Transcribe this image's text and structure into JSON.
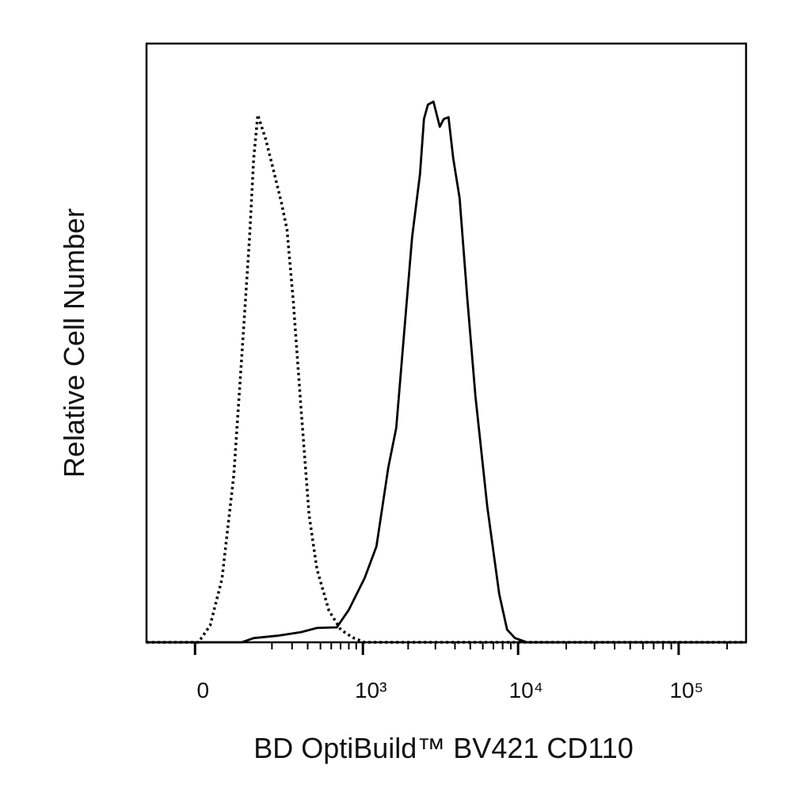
{
  "chart_data": {
    "type": "line",
    "x_label": "BD OptiBuild™ BV421 CD110",
    "y_label": "Relative Cell Number",
    "xscale": "log1p",
    "xlim": [
      -100,
      262143
    ],
    "xticks": [
      0,
      {
        "value": 1000,
        "label": "10³"
      },
      {
        "value": 10000,
        "label": "10⁴"
      },
      {
        "value": 100000,
        "label": "10⁵"
      }
    ],
    "xminorticks": [
      200,
      300,
      400,
      500,
      600,
      700,
      800,
      900,
      2000,
      3000,
      4000,
      5000,
      6000,
      7000,
      8000,
      9000,
      20000,
      30000,
      40000,
      50000,
      60000,
      70000,
      80000,
      90000,
      200000
    ],
    "ylim": [
      0,
      100
    ],
    "series": [
      {
        "color": "#000000",
        "linestyle": "dotted",
        "x": [
          -100,
          5,
          24,
          47,
          74,
          95,
          118,
          131,
          145,
          174,
          207,
          243,
          272,
          307,
          356,
          410,
          471,
          577,
          702,
          850,
          1026,
          262143
        ],
        "values": [
          0,
          0,
          2.8,
          10.6,
          27.9,
          47.8,
          67.6,
          80.8,
          88.1,
          84.1,
          78.8,
          73.5,
          68.9,
          57.0,
          38.5,
          21.2,
          12.2,
          5.3,
          2.1,
          0.8,
          0,
          0
        ]
      },
      {
        "color": "#000000",
        "linestyle": "solid",
        "x": [
          -100,
          95,
          131,
          224,
          356,
          471,
          658,
          798,
          1026,
          1235,
          1481,
          1671,
          1883,
          2121,
          2387,
          2531,
          2684,
          2914,
          3200,
          3391,
          3636,
          3899,
          4279,
          4802,
          5390,
          6406,
          7610,
          8533,
          9567,
          11360,
          262143
        ],
        "values": [
          0,
          0,
          0.7,
          1.1,
          1.7,
          2.4,
          2.5,
          5.4,
          10.7,
          16.0,
          29.2,
          35.8,
          51.7,
          67.6,
          78.2,
          87.4,
          89.8,
          90.3,
          86.1,
          87.4,
          87.7,
          80.8,
          74.2,
          57.0,
          41.1,
          22.6,
          8.1,
          2.1,
          0.7,
          0,
          0
        ]
      }
    ]
  }
}
